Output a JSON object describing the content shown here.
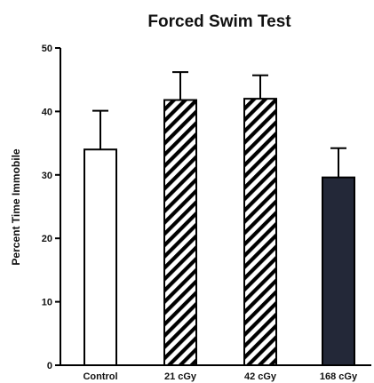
{
  "chart_data": {
    "type": "bar",
    "title": "Forced Swim Test",
    "ylabel": "Percent Time Immobile",
    "xlabel": "",
    "ylim": [
      0,
      50
    ],
    "yticks": [
      0,
      10,
      20,
      30,
      40,
      50
    ],
    "categories": [
      "Control",
      "21 cGy",
      "42 cGy",
      "168 cGy"
    ],
    "values": [
      34,
      41.8,
      42,
      29.6
    ],
    "errors": [
      6.1,
      4.4,
      3.7,
      4.6
    ],
    "fills": [
      "white",
      "hatch",
      "hatch",
      "solid"
    ],
    "colors": {
      "solid": "#232838",
      "hatch": "#000000",
      "outline": "#000000"
    },
    "grid": false,
    "legend": "none"
  }
}
